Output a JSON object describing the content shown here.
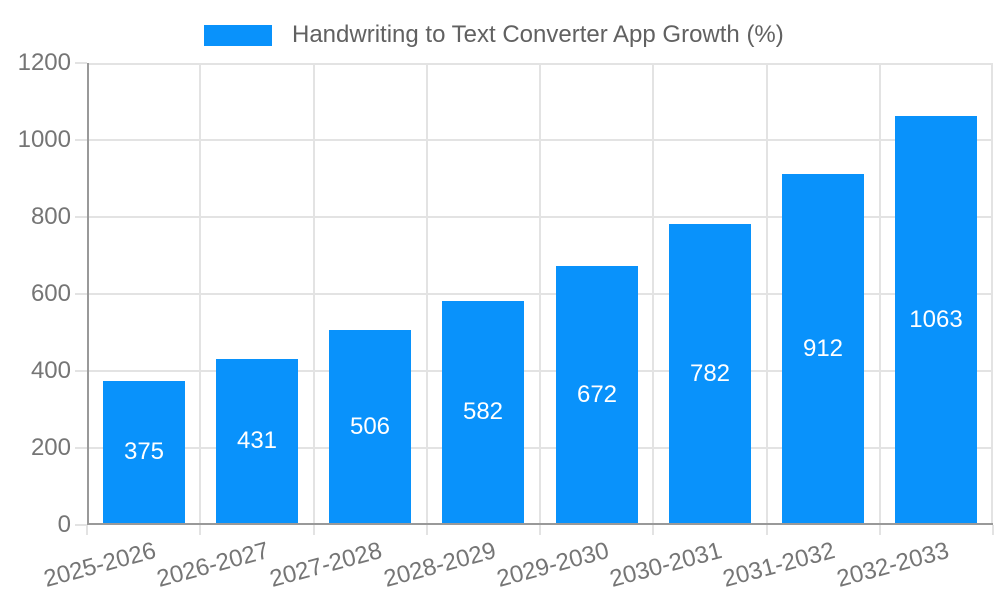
{
  "legend": {
    "label": "Handwriting to Text Converter App Growth (%)"
  },
  "colors": {
    "bar": "#0992fb",
    "axis": "#999999",
    "grid": "#e3e3e3",
    "tick_text": "#757575",
    "legend_text": "#616161",
    "bar_label": "#ffffff",
    "background": "#ffffff"
  },
  "chart_data": {
    "type": "bar",
    "title": "Handwriting to Text Converter App Growth (%)",
    "categories": [
      "2025-2026",
      "2026-2027",
      "2027-2028",
      "2028-2029",
      "2029-2030",
      "2030-2031",
      "2031-2032",
      "2032-2033"
    ],
    "values": [
      375,
      431,
      506,
      582,
      672,
      782,
      912,
      1063
    ],
    "xlabel": "",
    "ylabel": "",
    "ylim": [
      0,
      1200
    ],
    "yticks": [
      0,
      200,
      400,
      600,
      800,
      1000,
      1200
    ],
    "grid": true,
    "legend_position": "top-center",
    "x_tick_rotation_deg": -15,
    "value_labels": "inside-center"
  }
}
